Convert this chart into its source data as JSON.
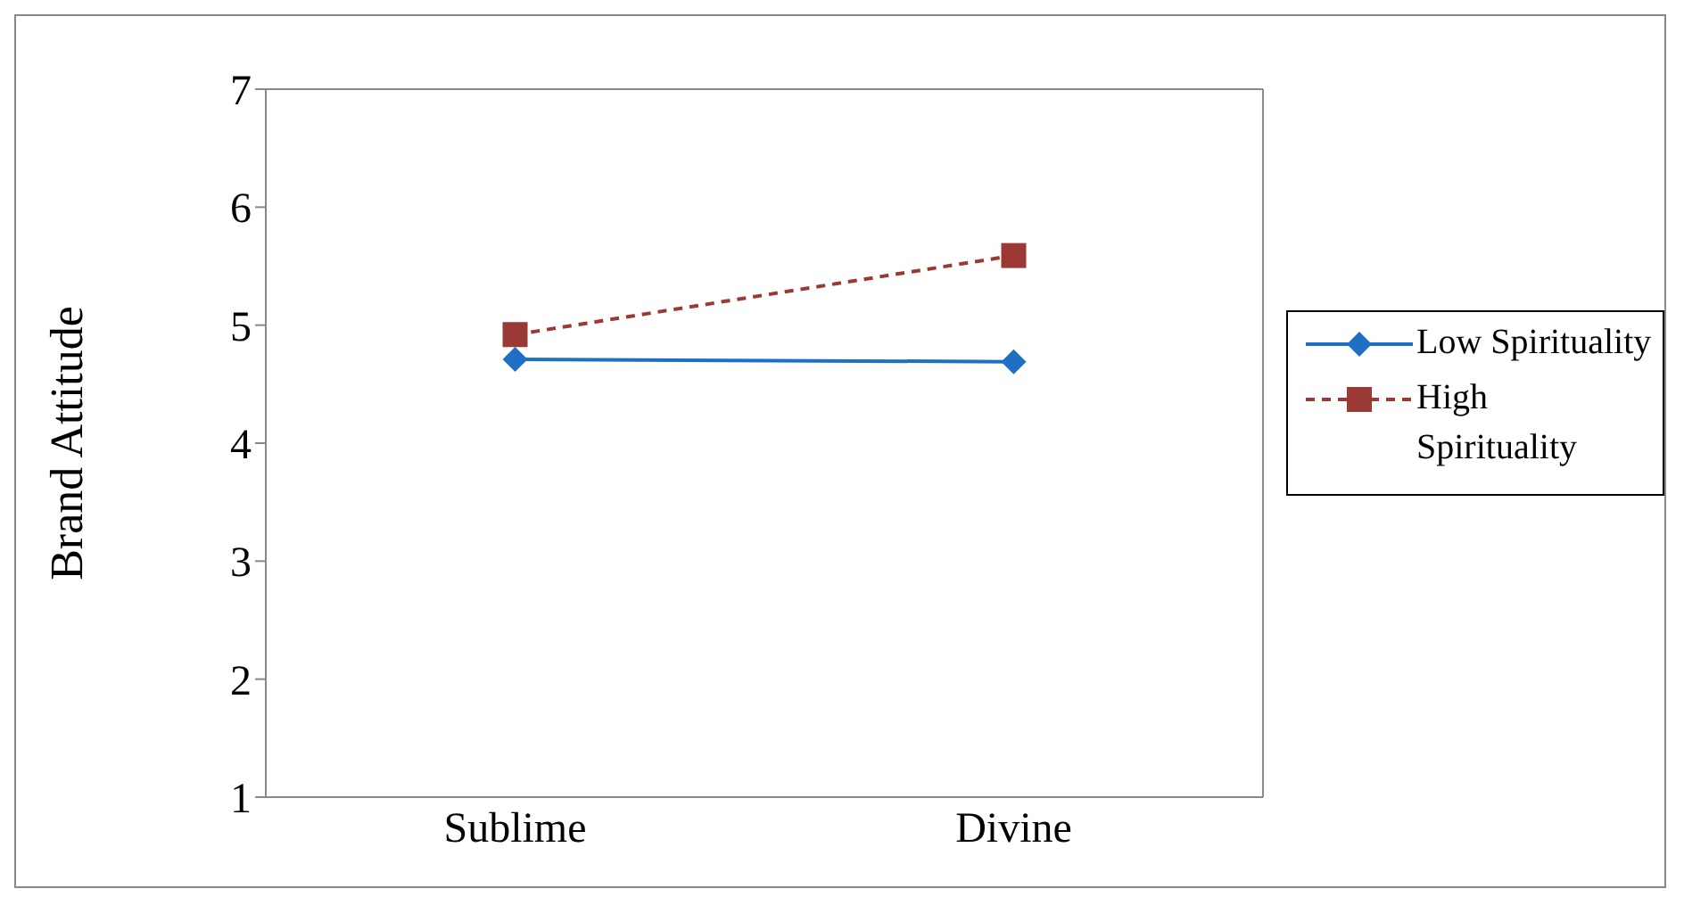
{
  "chart_data": {
    "type": "line",
    "ylabel": "Brand Attitude",
    "categories": [
      "Sublime",
      "Divine"
    ],
    "series": [
      {
        "name": "Low Spirituality",
        "color": "#1f6fc5",
        "values": [
          4.71,
          4.69
        ],
        "marker": "diamond",
        "line_style": "solid"
      },
      {
        "name": "High Spirituality",
        "color": "#9b3a35",
        "values": [
          4.92,
          5.59
        ],
        "marker": "square",
        "line_style": "dashed"
      }
    ],
    "ylim": [
      1,
      7
    ],
    "yticks": [
      1,
      2,
      3,
      4,
      5,
      6,
      7
    ],
    "legend": "right"
  }
}
